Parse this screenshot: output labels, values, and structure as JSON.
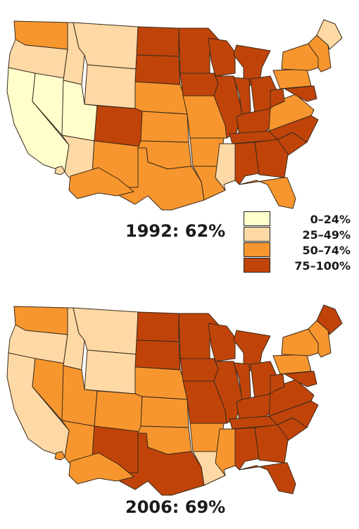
{
  "maps": [
    {
      "caption": "1992: 62%",
      "bins": {
        "CA": 0,
        "NV": 0,
        "UT": 0,
        "WA": 2,
        "OR": 1,
        "ID": 1,
        "MT": 1,
        "WY": 1,
        "AZ": 1,
        "NM": 2,
        "CO": 3,
        "ND": 3,
        "SD": 3,
        "NE": 2,
        "KS": 2,
        "OK": 2,
        "TX": 2,
        "MN": 3,
        "IA": 3,
        "MO": 2,
        "AR": 2,
        "LA": 2,
        "WI": 3,
        "IL": 3,
        "MS": 1,
        "MI": 3,
        "IN": 3,
        "OH": 3,
        "KY": 3,
        "TN": 3,
        "AL": 3,
        "GA": 3,
        "FL": 2,
        "SC": 3,
        "NC": 3,
        "VA": 2,
        "WV": 3,
        "PA": 2,
        "NY": 2,
        "ME": 1,
        "NE_ENGLAND": 2,
        "MD": 3,
        "AK": 2,
        "HI": 1
      }
    },
    {
      "caption": "2006: 69%",
      "bins": {
        "CA": 1,
        "NV": 2,
        "UT": 2,
        "WA": 2,
        "OR": 1,
        "ID": 1,
        "MT": 1,
        "WY": 1,
        "AZ": 2,
        "NM": 3,
        "CO": 2,
        "ND": 3,
        "SD": 3,
        "NE": 2,
        "KS": 2,
        "OK": 2,
        "TX": 3,
        "MN": 3,
        "IA": 3,
        "MO": 3,
        "AR": 2,
        "LA": 1,
        "WI": 3,
        "IL": 3,
        "MS": 2,
        "MI": 3,
        "IN": 3,
        "OH": 3,
        "KY": 3,
        "TN": 3,
        "AL": 3,
        "GA": 3,
        "FL": 3,
        "SC": 3,
        "NC": 3,
        "VA": 3,
        "WV": 3,
        "PA": 2,
        "NY": 2,
        "ME": 3,
        "NE_ENGLAND": 2,
        "MD": 3,
        "AK": 2,
        "HI": 2
      }
    }
  ],
  "legend": [
    {
      "label": "0–24%",
      "color": "#ffffcc"
    },
    {
      "label": "25–49%",
      "color": "#fed9a6"
    },
    {
      "label": "50–74%",
      "color": "#f7962e"
    },
    {
      "label": "75–100%",
      "color": "#c0440a"
    }
  ]
}
